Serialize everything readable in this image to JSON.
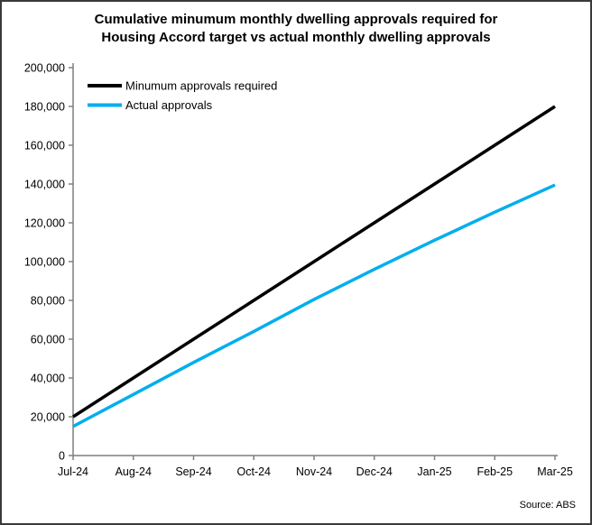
{
  "header": {
    "title_line1": "Cumulative minumum monthly dwelling approvals required for",
    "title_line2": "Housing Accord target vs actual monthly dwelling approvals"
  },
  "source": "Source: ABS",
  "colors": {
    "required_line": "#000000",
    "actual_line": "#00AEEF",
    "axis": "#7f7f7f",
    "text": "#000000",
    "background": "#ffffff",
    "frame_border": "#3a3a3a"
  },
  "chart_data": {
    "type": "line",
    "title": "Cumulative minumum monthly dwelling approvals required for Housing Accord target vs actual monthly dwelling approvals",
    "categories": [
      "Jul-24",
      "Aug-24",
      "Sep-24",
      "Oct-24",
      "Nov-24",
      "Dec-24",
      "Jan-25",
      "Feb-25",
      "Mar-25"
    ],
    "series": [
      {
        "name": "Minumum approvals required",
        "color": "#000000",
        "values": [
          20000,
          40000,
          60000,
          80000,
          100000,
          120000,
          140000,
          160000,
          180000
        ]
      },
      {
        "name": "Actual approvals",
        "color": "#00AEEF",
        "values": [
          15000,
          31500,
          48000,
          64000,
          80500,
          96000,
          111000,
          125500,
          139500
        ]
      }
    ],
    "xlabel": "",
    "ylabel": "",
    "ylim": [
      0,
      200000
    ],
    "yticks": [
      0,
      20000,
      40000,
      60000,
      80000,
      100000,
      120000,
      140000,
      160000,
      180000,
      200000
    ],
    "grid": false,
    "legend_position": "top-left-inside"
  }
}
